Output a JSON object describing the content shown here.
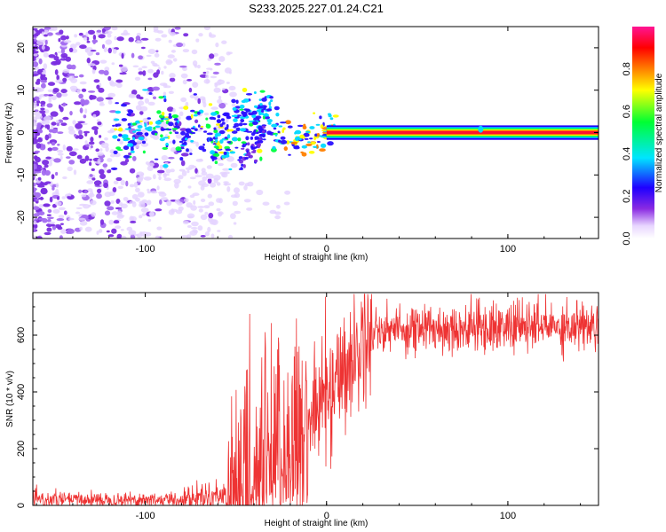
{
  "title": "S233.2025.227.01.24.C21",
  "chart_data": [
    {
      "type": "heatmap",
      "name": "spectrogram",
      "xlabel": "Height of straight line (km)",
      "ylabel": "Frequency (Hz)",
      "xlim": [
        -162,
        150
      ],
      "ylim": [
        -25,
        25
      ],
      "xticks": [
        -100,
        0,
        100
      ],
      "yticks": [
        -20,
        -10,
        0,
        10,
        20
      ],
      "colorbar": {
        "label": "Normalized spectral amplitude",
        "range": [
          0,
          1
        ],
        "ticks": [
          0.0,
          0.2,
          0.4,
          0.6,
          0.8
        ],
        "colormap": [
          "#ffffff",
          "#8a2be2",
          "#1f00ff",
          "#00e5ff",
          "#00ff33",
          "#ffff00",
          "#ff8000",
          "#ff0000",
          "#ff1493"
        ]
      },
      "features": {
        "steady_tone": {
          "x_start": 0,
          "x_end": 150,
          "frequency_hz": 0
        },
        "diffuse_noise_region": {
          "x_start": -162,
          "x_end": -65
        },
        "scattered_energy_frequency_range_hz": [
          -12,
          10
        ]
      }
    },
    {
      "type": "line",
      "name": "snr",
      "xlabel": "Height of straight line (km)",
      "ylabel": "SNR (10 * v/v)",
      "xlim": [
        -162,
        150
      ],
      "ylim": [
        0,
        750
      ],
      "xticks": [
        -100,
        0,
        100
      ],
      "yticks": [
        0,
        200,
        400,
        600
      ],
      "color": "#ee3333",
      "series_description": [
        {
          "x_range": [
            -162,
            -80
          ],
          "mean": 20,
          "noise": 15
        },
        {
          "x_range": [
            -80,
            -55
          ],
          "mean": 40,
          "noise": 30
        },
        {
          "x_range": [
            -55,
            -30
          ],
          "mean": 150,
          "noise": 300
        },
        {
          "x_range": [
            -30,
            -10
          ],
          "mean": 250,
          "noise": 400
        },
        {
          "x_range": [
            -10,
            25
          ],
          "mean": 450,
          "noise": 150
        },
        {
          "x_range": [
            25,
            150
          ],
          "mean": 630,
          "noise": 60
        }
      ]
    }
  ]
}
